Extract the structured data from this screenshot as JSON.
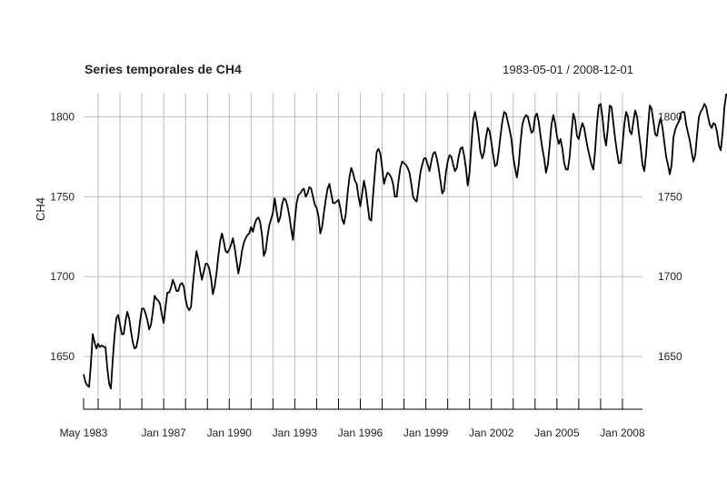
{
  "chart_data": {
    "type": "line",
    "title": "Series temporales de CH4",
    "date_range": "1983-05-01 / 2008-12-01",
    "xlabel": "",
    "ylabel": "CH4",
    "x_start": "1983-05-01",
    "x_end": "2008-12-01",
    "x_frequency": "monthly",
    "xlim": [
      "1983-05-01",
      "2008-12-01"
    ],
    "ylim": [
      1625,
      1815
    ],
    "y_ticks": [
      1650,
      1700,
      1750,
      1800
    ],
    "y_tick_labels": [
      "1650",
      "1700",
      "1750",
      "1800"
    ],
    "x_ticks": [
      "1983-05-01",
      "1987-01-01",
      "1990-01-01",
      "1993-01-01",
      "1996-01-01",
      "1999-01-01",
      "2002-01-01",
      "2005-01-01",
      "2008-01-01"
    ],
    "x_tick_labels": [
      "May 1983",
      "Jan 1987",
      "Jan 1990",
      "Jan 1993",
      "Jan 1996",
      "Jan 1999",
      "Jan 2002",
      "Jan 2005",
      "Jan 2008"
    ],
    "grid": true,
    "legend": "none",
    "line_color": "#000000",
    "grid_color": "#bbbbbb",
    "series": [
      {
        "values": [
          1639,
          1634,
          1632,
          1631,
          1645,
          1664,
          1659,
          1655,
          1658,
          1656,
          1657,
          1656,
          1656,
          1643,
          1633,
          1630,
          1648,
          1663,
          1674,
          1676,
          1670,
          1664,
          1664,
          1672,
          1678,
          1674,
          1666,
          1659,
          1655,
          1656,
          1662,
          1672,
          1680,
          1680,
          1677,
          1673,
          1667,
          1670,
          1678,
          1688,
          1686,
          1685,
          1683,
          1676,
          1671,
          1681,
          1690,
          1690,
          1693,
          1698,
          1695,
          1691,
          1691,
          1695,
          1696,
          1694,
          1686,
          1681,
          1679,
          1681,
          1695,
          1706,
          1716,
          1711,
          1704,
          1698,
          1703,
          1708,
          1708,
          1705,
          1699,
          1689,
          1694,
          1702,
          1713,
          1722,
          1727,
          1722,
          1716,
          1715,
          1717,
          1720,
          1724,
          1718,
          1710,
          1702,
          1708,
          1716,
          1721,
          1724,
          1726,
          1727,
          1731,
          1728,
          1733,
          1736,
          1737,
          1734,
          1726,
          1713,
          1716,
          1725,
          1732,
          1736,
          1740,
          1749,
          1741,
          1734,
          1737,
          1745,
          1749,
          1748,
          1744,
          1738,
          1730,
          1723,
          1735,
          1746,
          1751,
          1752,
          1754,
          1755,
          1750,
          1752,
          1756,
          1755,
          1750,
          1745,
          1743,
          1738,
          1727,
          1731,
          1740,
          1748,
          1755,
          1758,
          1752,
          1746,
          1746,
          1747,
          1748,
          1743,
          1736,
          1733,
          1739,
          1752,
          1762,
          1768,
          1765,
          1760,
          1758,
          1750,
          1744,
          1752,
          1760,
          1754,
          1745,
          1736,
          1735,
          1751,
          1765,
          1778,
          1780,
          1777,
          1768,
          1758,
          1762,
          1765,
          1764,
          1762,
          1758,
          1750,
          1750,
          1760,
          1768,
          1772,
          1771,
          1770,
          1768,
          1765,
          1758,
          1750,
          1748,
          1747,
          1756,
          1765,
          1770,
          1774,
          1774,
          1770,
          1766,
          1772,
          1777,
          1778,
          1774,
          1768,
          1760,
          1752,
          1754,
          1765,
          1772,
          1776,
          1775,
          1770,
          1766,
          1768,
          1775,
          1780,
          1781,
          1776,
          1768,
          1757,
          1765,
          1782,
          1798,
          1803,
          1797,
          1788,
          1778,
          1774,
          1778,
          1787,
          1793,
          1791,
          1784,
          1776,
          1769,
          1770,
          1778,
          1788,
          1797,
          1803,
          1802,
          1797,
          1792,
          1786,
          1775,
          1768,
          1762,
          1770,
          1784,
          1795,
          1799,
          1801,
          1800,
          1795,
          1790,
          1791,
          1800,
          1802,
          1797,
          1788,
          1780,
          1774,
          1765,
          1770,
          1782,
          1795,
          1801,
          1796,
          1788,
          1783,
          1786,
          1780,
          1771,
          1767,
          1767,
          1775,
          1790,
          1802,
          1798,
          1788,
          1786,
          1792,
          1796,
          1793,
          1786,
          1780,
          1775,
          1770,
          1767,
          1779,
          1796,
          1807,
          1808,
          1800,
          1788,
          1782,
          1793,
          1807,
          1806,
          1796,
          1786,
          1778,
          1771,
          1771,
          1782,
          1795,
          1803,
          1800,
          1791,
          1789,
          1797,
          1804,
          1800,
          1790,
          1781,
          1770,
          1766,
          1777,
          1793,
          1807,
          1805,
          1797,
          1789,
          1788,
          1795,
          1799,
          1793,
          1784,
          1775,
          1770,
          1764,
          1770,
          1787,
          1792,
          1795,
          1797,
          1802,
          1803,
          1803,
          1795,
          1790,
          1785,
          1778,
          1772,
          1776,
          1789,
          1800,
          1803,
          1805,
          1808,
          1806,
          1800,
          1795,
          1793,
          1796,
          1795,
          1790,
          1782,
          1779,
          1790,
          1806,
          1814,
          1813
        ]
      }
    ]
  }
}
